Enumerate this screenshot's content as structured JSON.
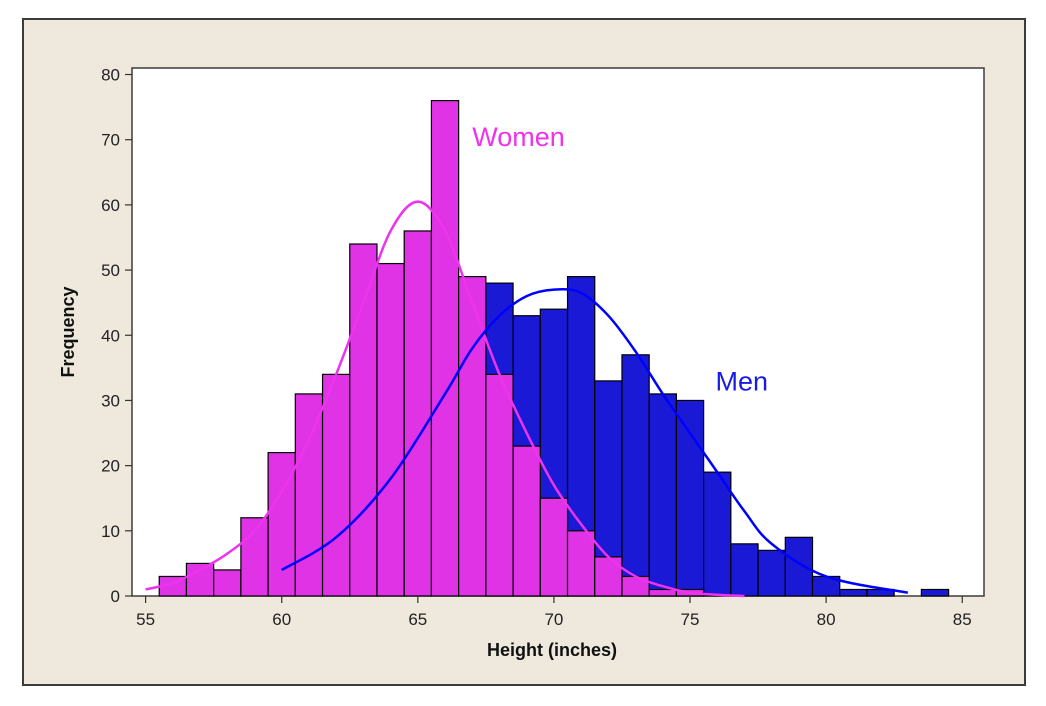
{
  "chart_data": {
    "type": "bar",
    "title": "",
    "xlabel": "Height (inches)",
    "ylabel": "Frequency",
    "xlim": [
      54.5,
      85.8
    ],
    "ylim": [
      0,
      81
    ],
    "xticks": [
      55,
      60,
      65,
      70,
      75,
      80,
      85
    ],
    "yticks": [
      0,
      10,
      20,
      30,
      40,
      50,
      60,
      70,
      80
    ],
    "bin_width": 1,
    "grid": false,
    "legend": "none",
    "series": [
      {
        "name": "Men",
        "color": "#1a1ad6",
        "stroke": "#0000ff",
        "bin_centers": [
          55,
          56,
          57,
          58,
          59,
          60,
          61,
          62,
          63,
          64,
          65,
          66,
          67,
          68,
          69,
          70,
          71,
          72,
          73,
          74,
          75,
          76,
          77,
          78,
          79,
          80,
          81,
          82,
          83,
          84,
          85
        ],
        "values": [
          0,
          0,
          0,
          0,
          0,
          0,
          0,
          0,
          0,
          0,
          0,
          0,
          0,
          48,
          43,
          44,
          49,
          33,
          37,
          31,
          30,
          19,
          8,
          7,
          9,
          3,
          1,
          1,
          0,
          1,
          0
        ],
        "fit_curve": {
          "x": [
            60,
            62,
            64,
            66,
            67,
            68,
            69,
            70,
            71,
            72,
            73,
            74,
            75,
            76,
            77,
            78,
            80,
            83
          ],
          "y": [
            4,
            9,
            18,
            31,
            38,
            43,
            46,
            47,
            46.5,
            43,
            37.5,
            31,
            25,
            19,
            13,
            8,
            3,
            0.5
          ]
        }
      },
      {
        "name": "Women",
        "color": "#e033e6",
        "stroke": "#ee33ee",
        "bin_centers": [
          55,
          56,
          57,
          58,
          59,
          60,
          61,
          62,
          63,
          64,
          65,
          66,
          67,
          68,
          69,
          70,
          71,
          72,
          73,
          74,
          75,
          76,
          77
        ],
        "values": [
          0,
          3,
          5,
          4,
          12,
          22,
          31,
          34,
          54,
          51,
          56,
          76,
          49,
          34,
          23,
          15,
          10,
          6,
          3,
          1,
          1,
          0,
          0
        ],
        "fit_curve": {
          "x": [
            55,
            56,
            57,
            58,
            59,
            60,
            61,
            62,
            63,
            64,
            65,
            66,
            67,
            68,
            69,
            70,
            71,
            72,
            73,
            74,
            75,
            76,
            77
          ],
          "y": [
            1,
            2,
            4,
            6.5,
            10,
            16,
            24,
            34,
            45,
            56,
            60.5,
            56,
            45,
            34,
            25,
            17,
            11,
            6,
            3,
            1.5,
            0.5,
            0.2,
            0
          ]
        }
      }
    ],
    "annotations": [
      {
        "text": "Women",
        "x": 68.7,
        "y": 69,
        "color": "#ee33ee"
      },
      {
        "text": "Men",
        "x": 76.9,
        "y": 31.5,
        "color": "#1a1ae6"
      }
    ]
  }
}
